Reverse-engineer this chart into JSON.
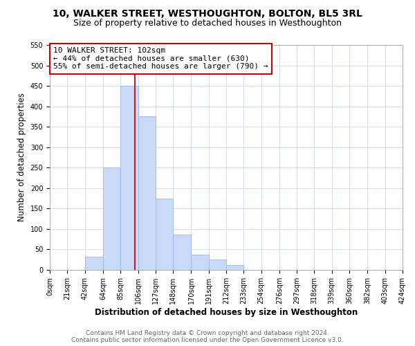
{
  "title": "10, WALKER STREET, WESTHOUGHTON, BOLTON, BL5 3RL",
  "subtitle": "Size of property relative to detached houses in Westhoughton",
  "xlabel": "Distribution of detached houses by size in Westhoughton",
  "ylabel": "Number of detached properties",
  "bar_edges": [
    0,
    21,
    42,
    64,
    85,
    106,
    127,
    148,
    170,
    191,
    212,
    233,
    254,
    276,
    297,
    318,
    339,
    360,
    382,
    403,
    424
  ],
  "bar_heights": [
    0,
    0,
    33,
    250,
    450,
    375,
    175,
    87,
    37,
    25,
    12,
    0,
    0,
    0,
    0,
    0,
    0,
    0,
    0,
    0
  ],
  "bar_color": "#c9daf8",
  "bar_edge_color": "#a4bce8",
  "ylim": [
    0,
    550
  ],
  "yticks": [
    0,
    50,
    100,
    150,
    200,
    250,
    300,
    350,
    400,
    450,
    500,
    550
  ],
  "xtick_labels": [
    "0sqm",
    "21sqm",
    "42sqm",
    "64sqm",
    "85sqm",
    "106sqm",
    "127sqm",
    "148sqm",
    "170sqm",
    "191sqm",
    "212sqm",
    "233sqm",
    "254sqm",
    "276sqm",
    "297sqm",
    "318sqm",
    "339sqm",
    "360sqm",
    "382sqm",
    "403sqm",
    "424sqm"
  ],
  "property_line_x": 102,
  "property_line_color": "#cc0000",
  "annotation_text": "10 WALKER STREET: 102sqm\n← 44% of detached houses are smaller (630)\n55% of semi-detached houses are larger (790) →",
  "annotation_box_color": "#ffffff",
  "annotation_box_edge_color": "#cc0000",
  "footer_line1": "Contains HM Land Registry data © Crown copyright and database right 2024.",
  "footer_line2": "Contains public sector information licensed under the Open Government Licence v3.0.",
  "grid_color": "#d0d8e8",
  "background_color": "#ffffff",
  "title_fontsize": 10,
  "subtitle_fontsize": 9,
  "axis_label_fontsize": 8.5,
  "tick_fontsize": 7,
  "annotation_fontsize": 8,
  "footer_fontsize": 6.5
}
